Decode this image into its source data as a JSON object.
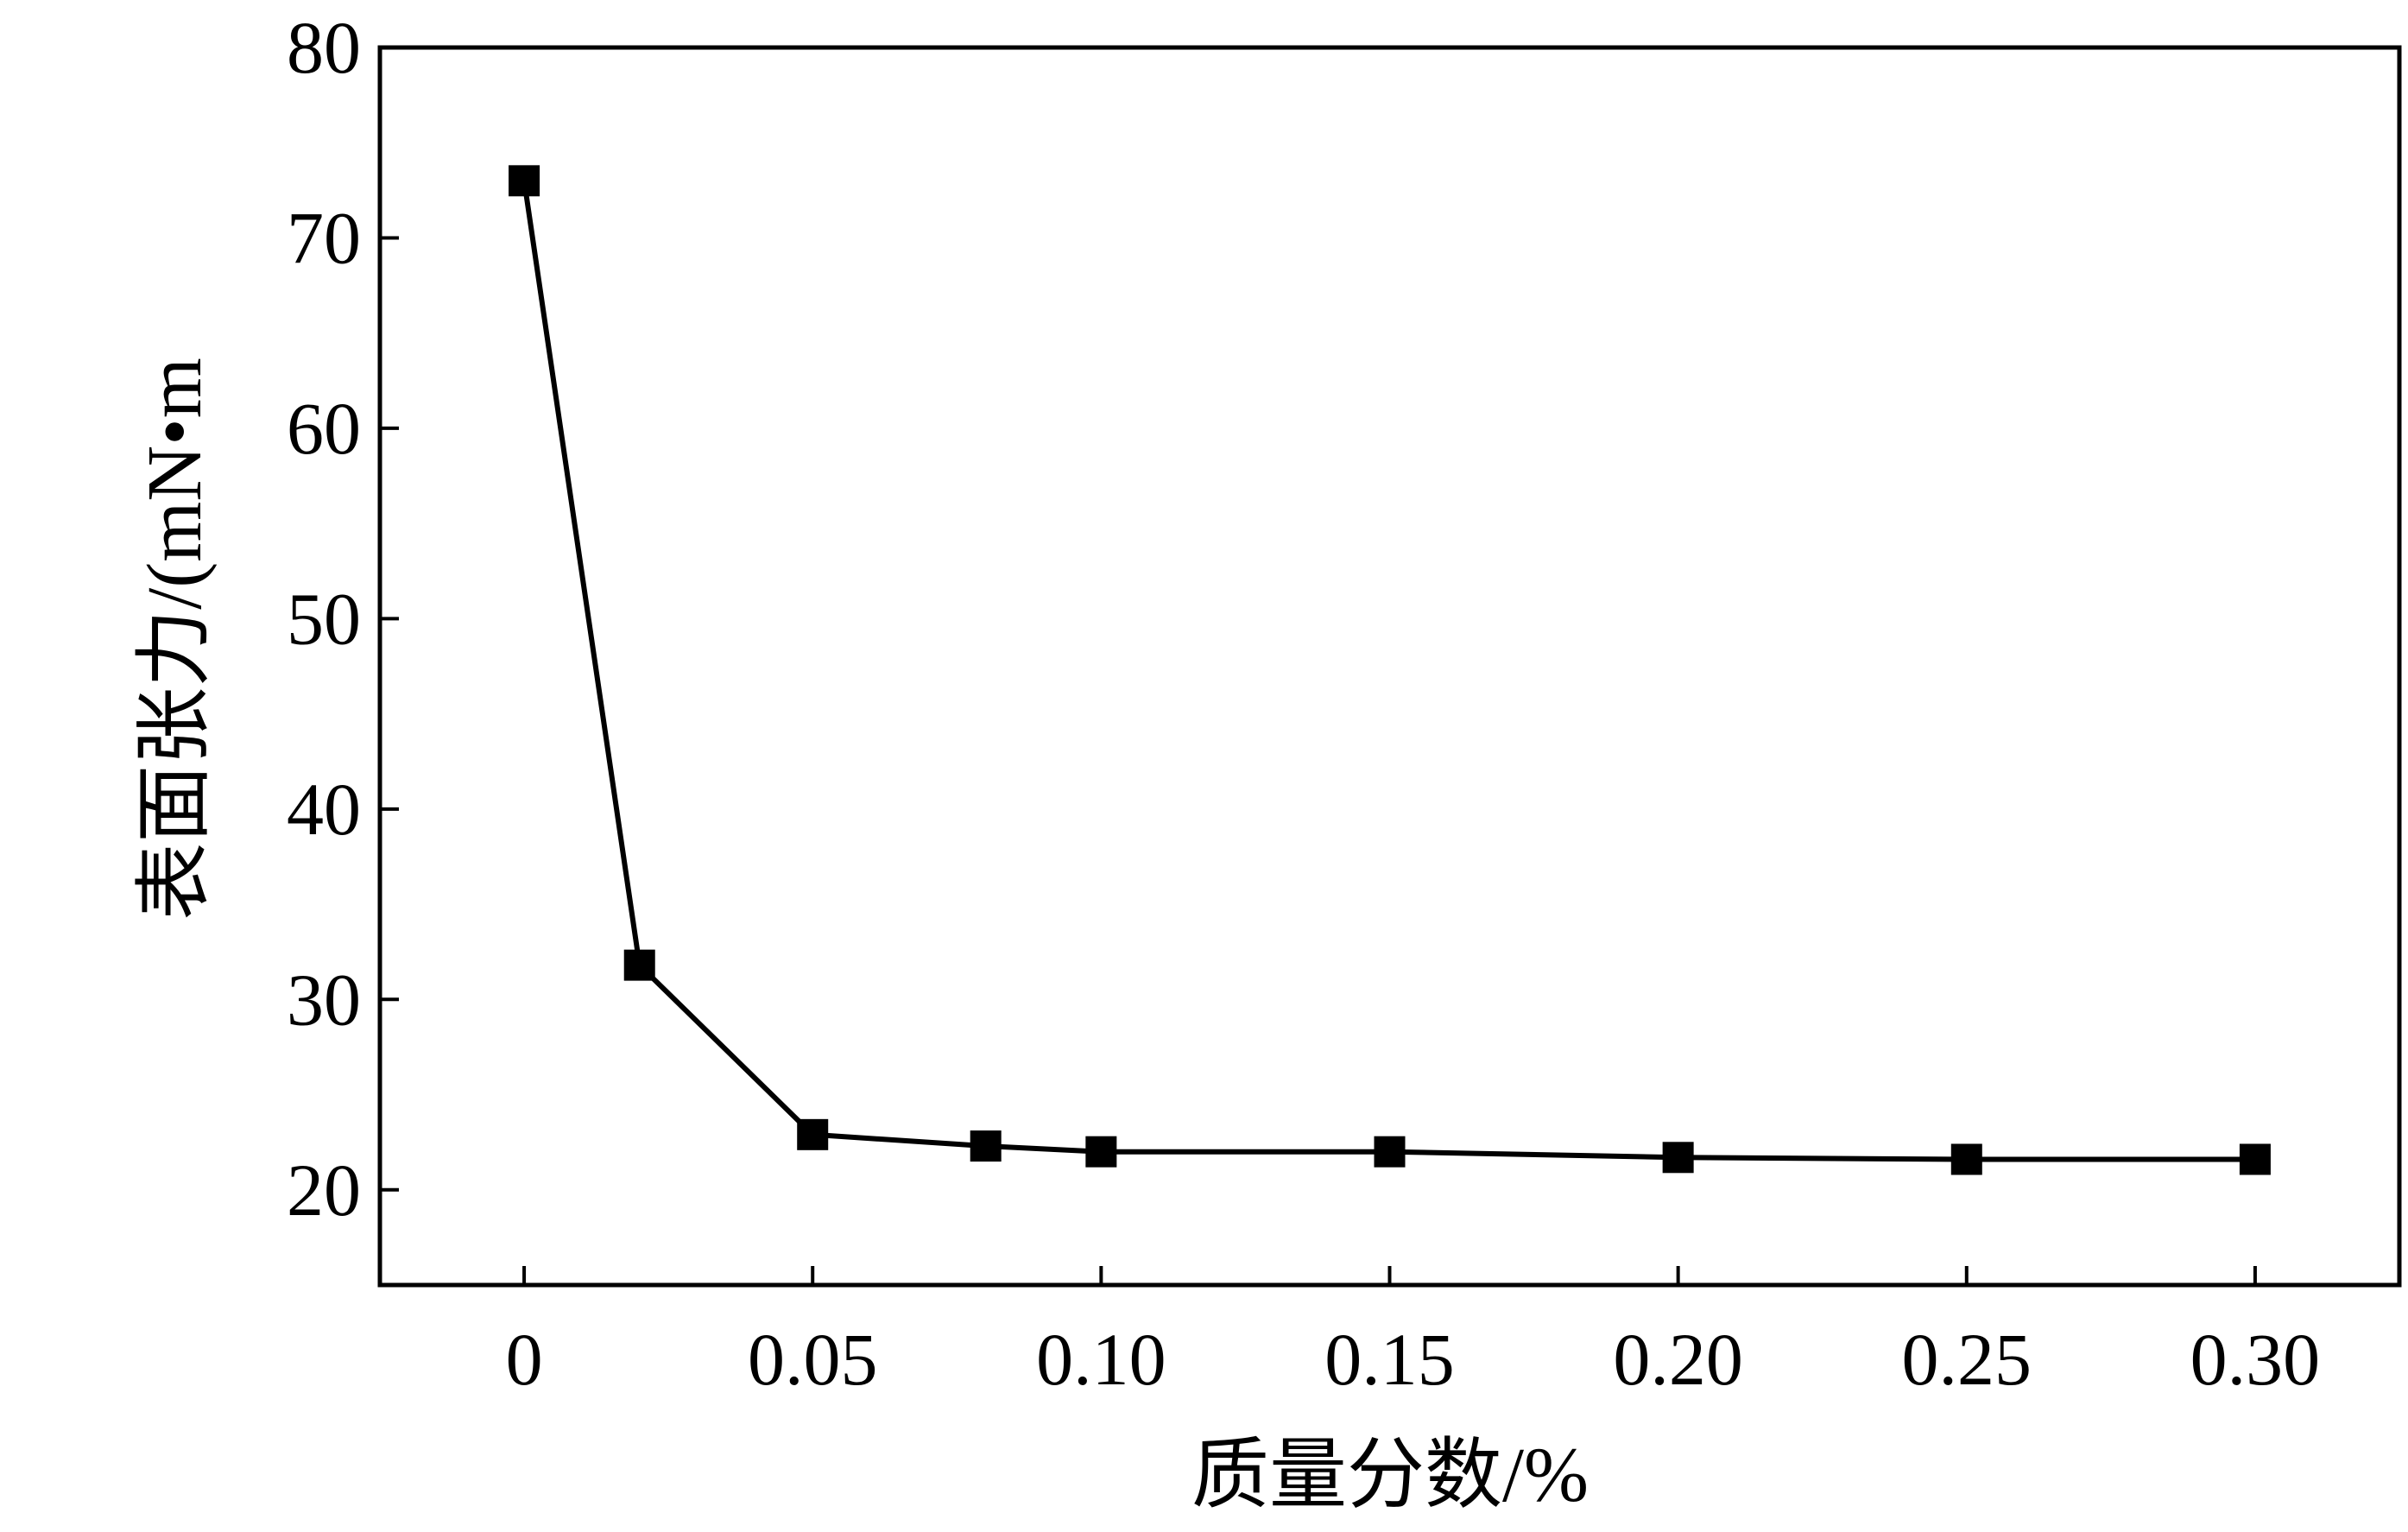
{
  "chart_data": {
    "type": "line",
    "title": "",
    "xlabel": "质量分数/%",
    "ylabel": "表面张力/(mN•m",
    "xlim": [
      -0.025,
      0.325
    ],
    "ylim": [
      15,
      80
    ],
    "x_ticks": [
      0,
      0.05,
      0.1,
      0.15,
      0.2,
      0.25,
      0.3
    ],
    "x_tick_labels": [
      "0",
      "0.05",
      "0.10",
      "0.15",
      "0.20",
      "0.25",
      "0.30"
    ],
    "y_ticks": [
      20,
      30,
      40,
      50,
      60,
      70,
      80
    ],
    "y_tick_labels": [
      "20",
      "30",
      "40",
      "50",
      "60",
      "70",
      "80"
    ],
    "grid": false,
    "marker": "square",
    "color": "#000000",
    "series": [
      {
        "x": [
          0,
          0.02,
          0.05,
          0.08,
          0.1,
          0.15,
          0.2,
          0.25,
          0.3
        ],
        "y": [
          73.0,
          31.8,
          22.9,
          22.3,
          22.0,
          22.0,
          21.7,
          21.6,
          21.6
        ]
      }
    ]
  }
}
